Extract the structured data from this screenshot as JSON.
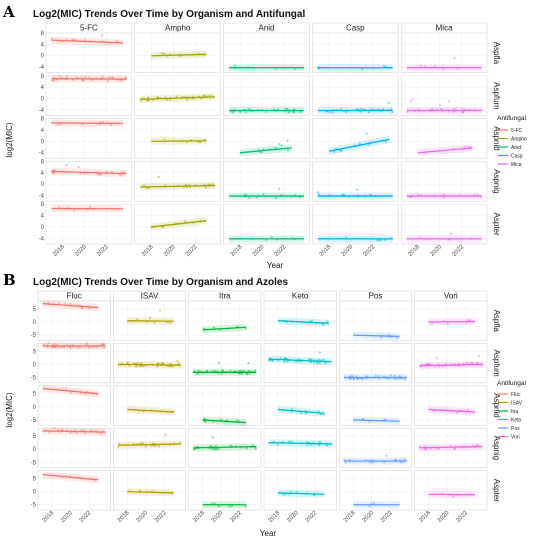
{
  "chart_data": [
    {
      "panel_letter": "A",
      "title": "Log2(MIC) Trends Over Time by Organism and Antifungal",
      "type": "scatter",
      "xlabel": "Year",
      "ylabel": "log2(MIC)",
      "xlim": [
        2016.5,
        2024.3
      ],
      "ylim": [
        -6,
        8
      ],
      "x_ticks": [
        2018,
        2020,
        2022
      ],
      "y_ticks": [
        -4,
        0,
        4,
        8
      ],
      "grid": true,
      "legend_title": "Antifungal",
      "legend_position": "right",
      "drugs": [
        {
          "name": "5-FC",
          "color": "#F8766D"
        },
        {
          "name": "Ampho",
          "color": "#A3A500"
        },
        {
          "name": "Anid",
          "color": "#00BF7D"
        },
        {
          "name": "Casp",
          "color": "#00B0F6"
        },
        {
          "name": "Mica",
          "color": "#E76BF3"
        }
      ],
      "organisms": [
        "Aspfla",
        "Aspfum",
        "Aspnid",
        "Aspnig",
        "Aspter"
      ],
      "trends": [
        [
          [
            2017,
            5.5,
            2023.5,
            4.5
          ],
          [
            2018,
            0,
            2023,
            0.5
          ],
          [
            2017,
            -4.2,
            2023.8,
            -4.2
          ],
          [
            2017,
            -4.2,
            2023.8,
            -4.2
          ],
          [
            2017,
            -4.2,
            2023.8,
            -4.2
          ]
        ],
        [
          [
            2017,
            7,
            2023.8,
            6.8
          ],
          [
            2017,
            -0.3,
            2023.8,
            0.6
          ],
          [
            2017,
            -4.2,
            2023.8,
            -4.2
          ],
          [
            2017,
            -4.2,
            2023.8,
            -4.2
          ],
          [
            2017,
            -4.2,
            2023.8,
            -4.2
          ]
        ],
        [
          [
            2017,
            6.5,
            2023.5,
            6.3
          ],
          [
            2018,
            0,
            2023,
            0.2
          ],
          [
            2018,
            -4,
            2022.7,
            -2.3
          ],
          [
            2018,
            -3.5,
            2023.5,
            0.7
          ],
          [
            2018,
            -4,
            2023,
            -2.3
          ]
        ],
        [
          [
            2017,
            4.5,
            2023.8,
            3.7
          ],
          [
            2017,
            -1,
            2023.8,
            -0.5
          ],
          [
            2017,
            -4.2,
            2023.8,
            -4.2
          ],
          [
            2017,
            -4.2,
            2023.8,
            -4.2
          ],
          [
            2017,
            -4.2,
            2023.8,
            -4.2
          ]
        ],
        [
          [
            2017,
            6.5,
            2023.5,
            6.4
          ],
          [
            2018,
            0,
            2023,
            2.2
          ],
          [
            2017,
            -4.2,
            2023.8,
            -4.2
          ],
          [
            2017,
            -4.2,
            2023.8,
            -4.2
          ],
          [
            2017,
            -4.2,
            2023.8,
            -4.2
          ]
        ]
      ],
      "density": [
        [
          14,
          10,
          6,
          6,
          6
        ],
        [
          40,
          38,
          34,
          34,
          34
        ],
        [
          10,
          10,
          12,
          14,
          8
        ],
        [
          26,
          22,
          14,
          14,
          14
        ],
        [
          8,
          10,
          6,
          6,
          6
        ]
      ]
    },
    {
      "panel_letter": "B",
      "title": "Log2(MIC) Trends Over Time by Organism and Azoles",
      "type": "scatter",
      "xlabel": "Year",
      "ylabel": "log2(MIC)",
      "xlim": [
        2016.5,
        2024.3
      ],
      "ylim": [
        -7,
        8
      ],
      "x_ticks": [
        2018,
        2020,
        2022
      ],
      "y_ticks": [
        -5,
        0,
        5
      ],
      "grid": true,
      "legend_title": "Antifungal",
      "legend_position": "right",
      "drugs": [
        {
          "name": "Fluc",
          "color": "#F8766D"
        },
        {
          "name": "ISAV",
          "color": "#B79F00"
        },
        {
          "name": "Itra",
          "color": "#00BA38"
        },
        {
          "name": "Keto",
          "color": "#00BFC4"
        },
        {
          "name": "Pos",
          "color": "#619CFF"
        },
        {
          "name": "Vori",
          "color": "#F564E3"
        }
      ],
      "organisms": [
        "Aspfla",
        "Aspfum",
        "Aspnid",
        "Aspnig",
        "Aspter"
      ],
      "trends": [
        [
          [
            2017,
            7,
            2023,
            5.5
          ],
          [
            2018,
            0.5,
            2023,
            0.3
          ],
          [
            2018,
            -3,
            2022.7,
            -2
          ],
          [
            2018,
            0.5,
            2023.5,
            -0.5
          ],
          [
            2018,
            -5,
            2023,
            -5.5
          ],
          [
            2018,
            0,
            2023,
            0.2
          ]
        ],
        [
          [
            2017,
            7,
            2023.8,
            7
          ],
          [
            2017,
            0,
            2023.8,
            -0.3
          ],
          [
            2017,
            -3,
            2023.8,
            -3
          ],
          [
            2017,
            2,
            2023.8,
            1
          ],
          [
            2017,
            -5,
            2023.8,
            -5
          ],
          [
            2017,
            -0.5,
            2023.8,
            0
          ]
        ],
        [
          [
            2017,
            7,
            2023,
            5
          ],
          [
            2018,
            -1,
            2023,
            -2
          ],
          [
            2018,
            -5,
            2022.7,
            -6
          ],
          [
            2018,
            -1,
            2023,
            -2.5
          ],
          [
            2018,
            -5,
            2023,
            -5.5
          ],
          [
            2018,
            -1,
            2023,
            -2
          ]
        ],
        [
          [
            2017,
            7,
            2023.8,
            6.5
          ],
          [
            2017,
            1.5,
            2023.8,
            2
          ],
          [
            2017,
            0.5,
            2023.8,
            1
          ],
          [
            2017,
            2.5,
            2023.8,
            2
          ],
          [
            2017,
            -4.5,
            2023.8,
            -4.5
          ],
          [
            2017,
            0.5,
            2023.8,
            1
          ]
        ],
        [
          [
            2017,
            6.5,
            2023,
            4.5
          ],
          [
            2018,
            0,
            2023,
            -0.5
          ],
          [
            2018,
            -5,
            2022.7,
            -5
          ],
          [
            2018,
            -0.5,
            2023,
            -1
          ],
          [
            2018,
            -5,
            2023,
            -5
          ],
          [
            2018,
            -1,
            2023,
            -1.2
          ]
        ]
      ],
      "density": [
        [
          12,
          8,
          8,
          10,
          6,
          6
        ],
        [
          42,
          40,
          44,
          46,
          44,
          40
        ],
        [
          10,
          8,
          10,
          10,
          6,
          6
        ],
        [
          26,
          22,
          26,
          24,
          20,
          20
        ],
        [
          8,
          6,
          6,
          8,
          4,
          4
        ]
      ]
    }
  ]
}
